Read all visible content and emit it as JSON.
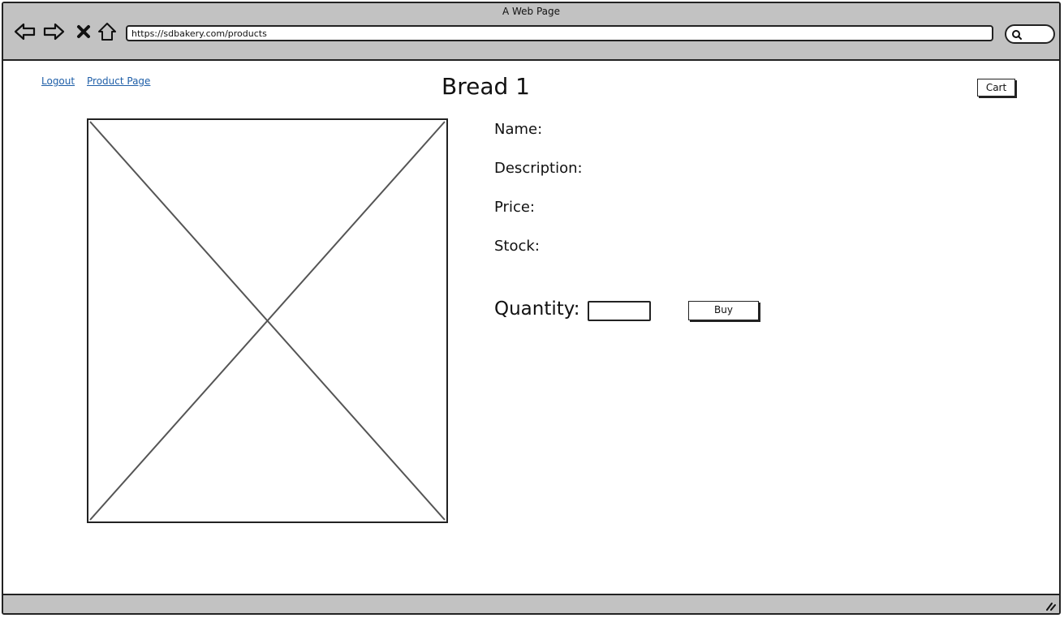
{
  "window": {
    "title": "A Web Page"
  },
  "browser": {
    "url": "https://sdbakery.com/products",
    "nav": [
      "back",
      "forward",
      "stop",
      "home"
    ]
  },
  "header": {
    "links": [
      {
        "label": "Logout"
      },
      {
        "label": "Product Page"
      }
    ],
    "title": "Bread 1",
    "cart_label": "Cart"
  },
  "product": {
    "fields": [
      {
        "label": "Name:"
      },
      {
        "label": "Description:"
      },
      {
        "label": "Price:"
      },
      {
        "label": "Stock:"
      }
    ],
    "quantity_label": "Quantity:",
    "quantity_value": "",
    "buy_label": "Buy"
  }
}
